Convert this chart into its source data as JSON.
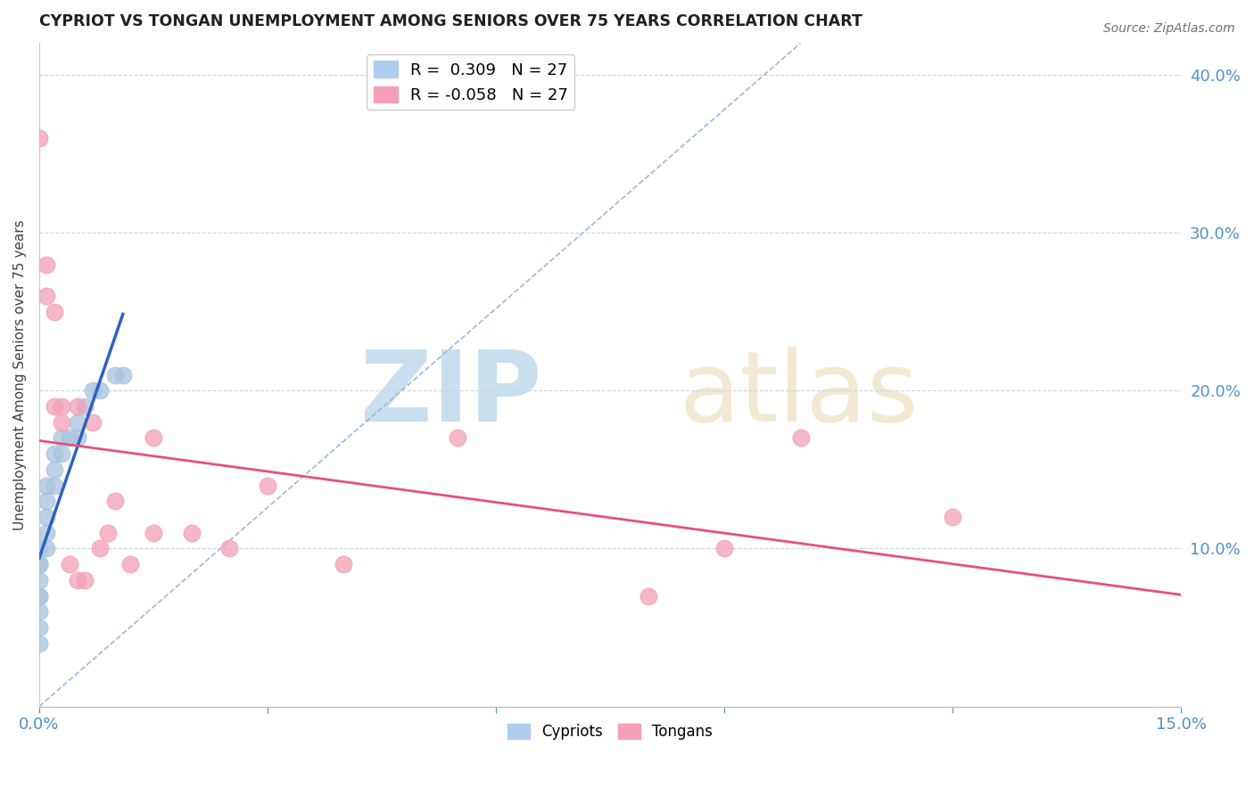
{
  "title": "CYPRIOT VS TONGAN UNEMPLOYMENT AMONG SENIORS OVER 75 YEARS CORRELATION CHART",
  "source": "Source: ZipAtlas.com",
  "ylabel": "Unemployment Among Seniors over 75 years",
  "xlim": [
    0.0,
    0.15
  ],
  "ylim": [
    0.0,
    0.42
  ],
  "y_ticks_right": [
    0.1,
    0.2,
    0.3,
    0.4
  ],
  "cypriot_R": 0.309,
  "cypriot_N": 27,
  "tongan_R": -0.058,
  "tongan_N": 27,
  "cypriot_color": "#a8c4e0",
  "tongan_color": "#f4a0b8",
  "cypriot_line_color": "#3060c0",
  "tongan_line_color": "#e8507a",
  "dashed_line_color": "#a0b8d8",
  "background_color": "#ffffff",
  "cypriot_x": [
    0.0,
    0.0,
    0.0,
    0.0,
    0.0,
    0.0,
    0.0,
    0.0,
    0.0,
    0.001,
    0.001,
    0.001,
    0.001,
    0.001,
    0.002,
    0.002,
    0.002,
    0.003,
    0.003,
    0.004,
    0.005,
    0.005,
    0.006,
    0.007,
    0.008,
    0.01,
    0.011
  ],
  "cypriot_y": [
    0.04,
    0.05,
    0.06,
    0.07,
    0.07,
    0.08,
    0.09,
    0.09,
    0.1,
    0.1,
    0.11,
    0.12,
    0.13,
    0.14,
    0.14,
    0.15,
    0.16,
    0.16,
    0.17,
    0.17,
    0.17,
    0.18,
    0.19,
    0.2,
    0.2,
    0.21,
    0.21
  ],
  "tongan_x": [
    0.0,
    0.001,
    0.001,
    0.002,
    0.002,
    0.003,
    0.003,
    0.004,
    0.005,
    0.005,
    0.006,
    0.007,
    0.008,
    0.009,
    0.01,
    0.012,
    0.015,
    0.015,
    0.02,
    0.025,
    0.03,
    0.04,
    0.055,
    0.08,
    0.09,
    0.1,
    0.12
  ],
  "tongan_y": [
    0.36,
    0.28,
    0.26,
    0.19,
    0.25,
    0.18,
    0.19,
    0.09,
    0.19,
    0.08,
    0.08,
    0.18,
    0.1,
    0.11,
    0.13,
    0.09,
    0.17,
    0.11,
    0.11,
    0.1,
    0.14,
    0.09,
    0.17,
    0.07,
    0.1,
    0.17,
    0.12
  ]
}
